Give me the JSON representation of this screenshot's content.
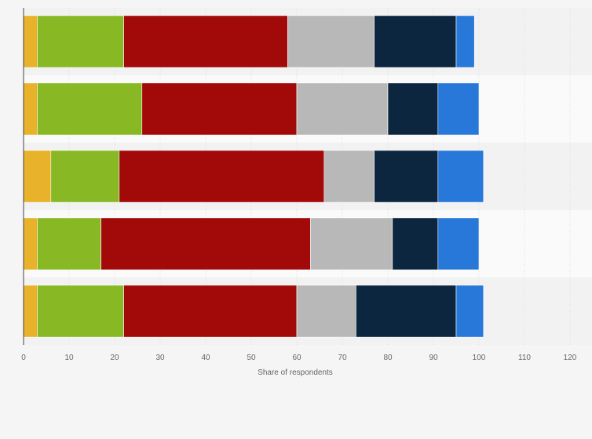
{
  "chart_data": {
    "type": "bar",
    "orientation": "horizontal",
    "stacked": true,
    "title": "",
    "xlabel": "Share of respondents",
    "ylabel": "",
    "xlim": [
      0,
      120
    ],
    "xticks": [
      0,
      10,
      20,
      30,
      40,
      50,
      60,
      70,
      80,
      90,
      100,
      110,
      120
    ],
    "grid": "vertical",
    "legend": "none",
    "categories": [
      "",
      "",
      "",
      "",
      ""
    ],
    "series": [
      {
        "color": "#e8b22a",
        "values": [
          3,
          3,
          6,
          3,
          3
        ]
      },
      {
        "color": "#88b925",
        "values": [
          19,
          23,
          15,
          14,
          19
        ]
      },
      {
        "color": "#a20a0a",
        "values": [
          36,
          34,
          45,
          46,
          38
        ]
      },
      {
        "color": "#b8b8b8",
        "values": [
          19,
          20,
          11,
          18,
          13
        ]
      },
      {
        "color": "#0d2640",
        "values": [
          18,
          11,
          14,
          10,
          22
        ]
      },
      {
        "color": "#2878d9",
        "values": [
          4,
          9,
          10,
          9,
          6
        ]
      }
    ]
  }
}
